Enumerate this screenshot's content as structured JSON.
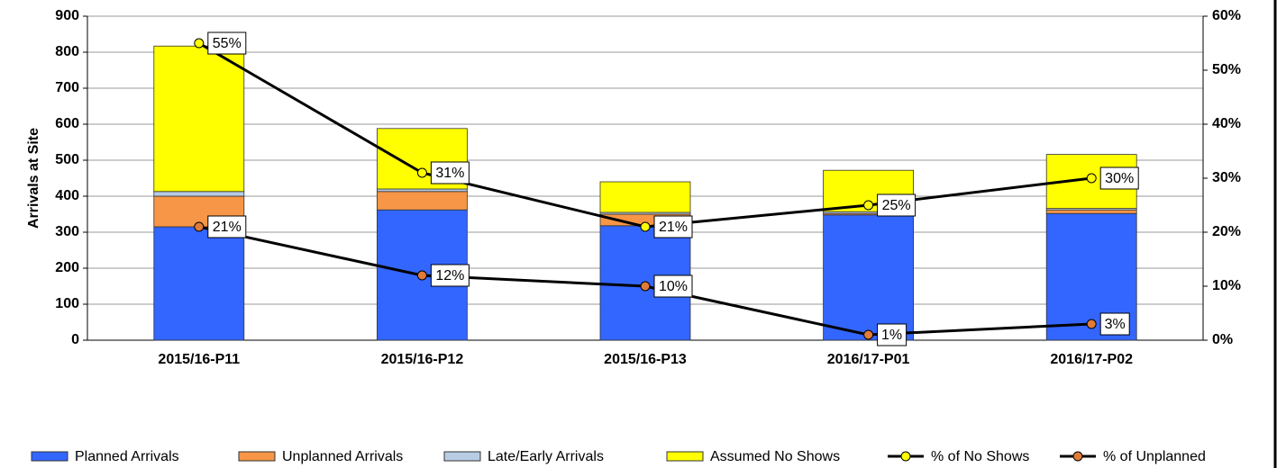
{
  "chart_data": {
    "type": "bar",
    "stacked": true,
    "y_label": "Arrivals at Site",
    "categories": [
      "2015/16-P11",
      "2015/16-P12",
      "2015/16-P13",
      "2016/17-P01",
      "2016/17-P02"
    ],
    "series": [
      {
        "name": "Planned Arrivals",
        "color": "#3366ff",
        "values": [
          315,
          362,
          318,
          348,
          352
        ]
      },
      {
        "name": "Unplanned Arrivals",
        "color": "#f79646",
        "values": [
          85,
          51,
          32,
          4,
          10
        ]
      },
      {
        "name": "Late/Early Arrivals",
        "color": "#b8cce4",
        "values": [
          13,
          7,
          5,
          5,
          4
        ]
      },
      {
        "name": "Assumed No Shows",
        "color": "#ffff00",
        "values": [
          404,
          168,
          85,
          115,
          150
        ]
      },
      {
        "name": "% of No Shows",
        "color": "#ffff00",
        "axis": "y2",
        "values": [
          55,
          31,
          21,
          25,
          30
        ],
        "value_labels": [
          "55%",
          "31%",
          "21%",
          "25%",
          "30%"
        ]
      },
      {
        "name": "% of Unplanned",
        "color": "#e07b39",
        "axis": "y2",
        "values": [
          21,
          12,
          10,
          1,
          3
        ],
        "value_labels": [
          "21%",
          "12%",
          "10%",
          "1%",
          "3%"
        ]
      }
    ],
    "ylim": [
      0,
      900
    ],
    "yticks": [
      0,
      100,
      200,
      300,
      400,
      500,
      600,
      700,
      800,
      900
    ],
    "y2lim": [
      0,
      60
    ],
    "y2ticks": [
      {
        "value": 0,
        "label": "0%"
      },
      {
        "value": 10,
        "label": "10%"
      },
      {
        "value": 20,
        "label": "20%"
      },
      {
        "value": 30,
        "label": "30%"
      },
      {
        "value": 40,
        "label": "40%"
      },
      {
        "value": 50,
        "label": "50%"
      },
      {
        "value": 60,
        "label": "60%"
      }
    ],
    "grid": true,
    "legend": "bottom"
  }
}
